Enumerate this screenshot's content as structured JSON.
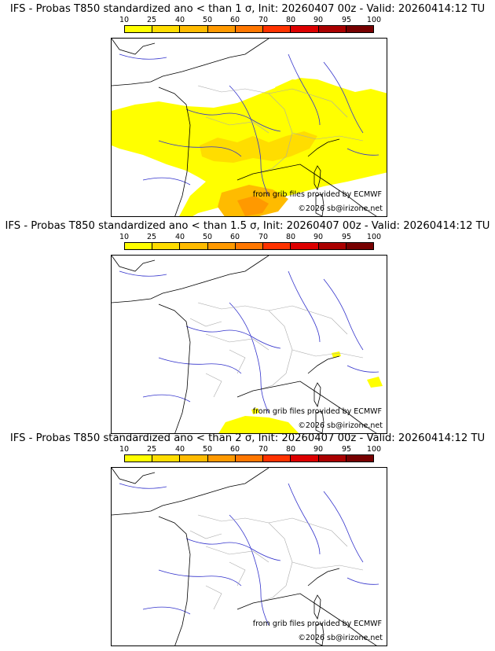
{
  "legend": {
    "ticks": [
      "10",
      "25",
      "40",
      "50",
      "60",
      "70",
      "80",
      "90",
      "95",
      "100"
    ],
    "colors": [
      "#ffff00",
      "#ffdd00",
      "#ffbb00",
      "#ff9900",
      "#ff7700",
      "#ff3300",
      "#dd0000",
      "#aa0000",
      "#770000"
    ]
  },
  "panels": [
    {
      "title": "IFS - Probas T850  standardized ano < than 1 σ, Init: 20260407 00z - Valid: 20260414:12 TU",
      "credit_source": "from grib files provided by ECMWF",
      "credit_copyright": "©2026 sb@irizone.net"
    },
    {
      "title": "IFS - Probas T850  standardized ano < than 1.5 σ, Init: 20260407 00z - Valid: 20260414:12 TU",
      "credit_source": "from grib files provided by ECMWF",
      "credit_copyright": "©2026 sb@irizone.net"
    },
    {
      "title": "IFS - Probas T850  standardized ano < than 2 σ, Init: 20260407 00z - Valid: 20260414:12 TU",
      "credit_source": "from grib files provided by ECMWF",
      "credit_copyright": "©2026 sb@irizone.net"
    }
  ],
  "colors": {
    "coast": "#000000",
    "rivers": "#3333cc",
    "borders": "#aaaaaa"
  }
}
